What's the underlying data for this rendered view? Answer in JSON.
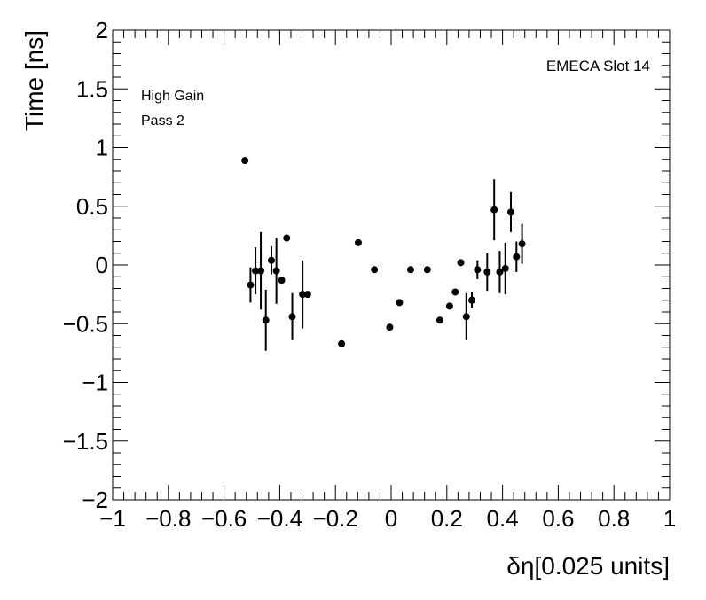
{
  "chart_data": {
    "type": "scatter",
    "title": "",
    "xlabel": "δη[0.025 units]",
    "ylabel": "Time [ns]",
    "xlim": [
      -1,
      1
    ],
    "ylim": [
      -2,
      2
    ],
    "x_ticks": [
      "−1",
      "−0.8",
      "−0.6",
      "−0.4",
      "−0.2",
      "0",
      "0.2",
      "0.4",
      "0.6",
      "0.8",
      "1"
    ],
    "y_ticks": [
      "−2",
      "−1.5",
      "−1",
      "−0.5",
      "0",
      "0.5",
      "1",
      "1.5",
      "2"
    ],
    "annotations": [
      "High Gain",
      "Pass 2",
      "EMECA Slot 14"
    ],
    "grid": false,
    "series": [
      {
        "marker": "circle",
        "color": "#000000",
        "points": [
          {
            "x": -0.525,
            "y": 0.89,
            "err": 0
          },
          {
            "x": -0.505,
            "y": -0.17,
            "err": 0.15
          },
          {
            "x": -0.487,
            "y": -0.05,
            "err": 0.2
          },
          {
            "x": -0.468,
            "y": -0.05,
            "err": 0.33
          },
          {
            "x": -0.45,
            "y": -0.47,
            "err": 0.26
          },
          {
            "x": -0.43,
            "y": 0.04,
            "err": 0.12
          },
          {
            "x": -0.412,
            "y": -0.05,
            "err": 0.28
          },
          {
            "x": -0.393,
            "y": -0.13,
            "err": 0
          },
          {
            "x": -0.375,
            "y": 0.23,
            "err": 0
          },
          {
            "x": -0.355,
            "y": -0.44,
            "err": 0.2
          },
          {
            "x": -0.318,
            "y": -0.25,
            "err": 0.29
          },
          {
            "x": -0.3,
            "y": -0.25,
            "err": 0
          },
          {
            "x": -0.178,
            "y": -0.67,
            "err": 0
          },
          {
            "x": -0.118,
            "y": 0.19,
            "err": 0
          },
          {
            "x": -0.06,
            "y": -0.04,
            "err": 0
          },
          {
            "x": -0.005,
            "y": -0.53,
            "err": 0
          },
          {
            "x": 0.03,
            "y": -0.32,
            "err": 0
          },
          {
            "x": 0.07,
            "y": -0.04,
            "err": 0
          },
          {
            "x": 0.13,
            "y": -0.04,
            "err": 0
          },
          {
            "x": 0.175,
            "y": -0.47,
            "err": 0
          },
          {
            "x": 0.21,
            "y": -0.35,
            "err": 0
          },
          {
            "x": 0.23,
            "y": -0.23,
            "err": 0
          },
          {
            "x": 0.25,
            "y": 0.02,
            "err": 0
          },
          {
            "x": 0.27,
            "y": -0.44,
            "err": 0.2
          },
          {
            "x": 0.29,
            "y": -0.3,
            "err": 0.07
          },
          {
            "x": 0.31,
            "y": -0.04,
            "err": 0.08
          },
          {
            "x": 0.345,
            "y": -0.06,
            "err": 0.16
          },
          {
            "x": 0.37,
            "y": 0.47,
            "err": 0.26
          },
          {
            "x": 0.39,
            "y": -0.06,
            "err": 0.18
          },
          {
            "x": 0.41,
            "y": -0.03,
            "err": 0.22
          },
          {
            "x": 0.43,
            "y": 0.45,
            "err": 0.17
          },
          {
            "x": 0.45,
            "y": 0.07,
            "err": 0.13
          },
          {
            "x": 0.47,
            "y": 0.18,
            "err": 0.17
          }
        ]
      }
    ]
  }
}
